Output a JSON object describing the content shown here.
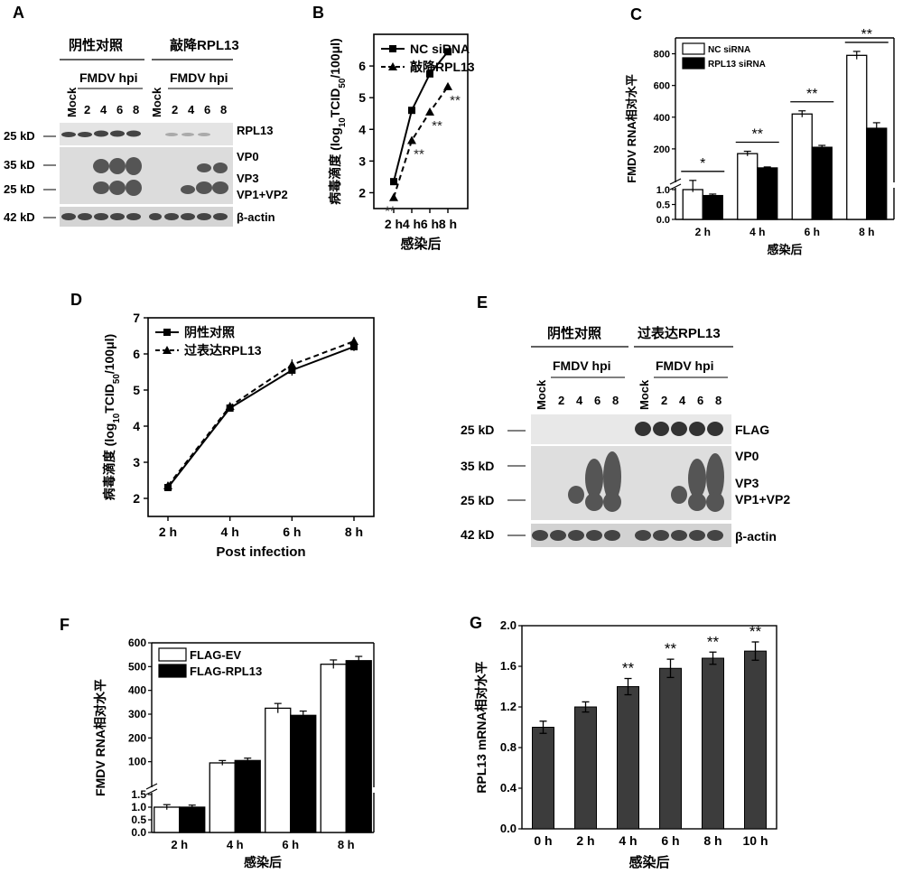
{
  "panels": {
    "A": {
      "letter": "A",
      "groups": [
        "阴性对照",
        "敲降RPL13"
      ],
      "hpi_label": "FMDV hpi",
      "mock": "Mock",
      "times": [
        "2",
        "4",
        "6",
        "8"
      ],
      "markers": [
        "25 kD",
        "35 kD",
        "25 kD",
        "42 kD"
      ],
      "bands": [
        "RPL13",
        "VP0",
        "VP3",
        "VP1+VP2",
        "β-actin"
      ]
    },
    "B": {
      "letter": "B"
    },
    "C": {
      "letter": "C"
    },
    "D": {
      "letter": "D"
    },
    "E": {
      "letter": "E",
      "groups": [
        "阴性对照",
        "过表达RPL13"
      ],
      "hpi_label": "FMDV hpi",
      "mock": "Mock",
      "times": [
        "2",
        "4",
        "6",
        "8"
      ],
      "markers": [
        "25 kD",
        "35 kD",
        "25 kD",
        "42 kD"
      ],
      "bands": [
        "FLAG",
        "VP0",
        "VP3",
        "VP1+VP2",
        "β-actin"
      ]
    },
    "F": {
      "letter": "F"
    },
    "G": {
      "letter": "G"
    }
  },
  "chart_data": [
    {
      "panel": "B",
      "type": "line",
      "x": [
        "2 h",
        "4 h",
        "6 h",
        "8 h"
      ],
      "xlabel": "感染后",
      "ylabel": "病毒滴度 (log10TCID50/100μl)",
      "ylim": [
        1.5,
        7
      ],
      "yticks": [
        2,
        3,
        4,
        5,
        6
      ],
      "legend": "top-left",
      "series": [
        {
          "name": "NC siRNA",
          "values": [
            2.35,
            4.6,
            5.75,
            6.45
          ],
          "errors": [
            0.08,
            0.08,
            0.1,
            0.08
          ],
          "marker": "square",
          "dash": false
        },
        {
          "name": "敲降RPL13",
          "values": [
            1.85,
            3.65,
            4.55,
            5.35
          ],
          "errors": [
            0.08,
            0.1,
            0.08,
            0.1
          ],
          "marker": "triangle",
          "dash": true
        }
      ],
      "annotations": [
        "**",
        "**",
        "**",
        "**"
      ]
    },
    {
      "panel": "C",
      "type": "bar",
      "categories": [
        "2 h",
        "4 h",
        "6 h",
        "8 h"
      ],
      "xlabel": "感染后",
      "ylabel": "FMDV RNA相对水平",
      "broken_axis": true,
      "lower_ticks": [
        "0.0",
        "0.5",
        "1.0"
      ],
      "upper_ticks": [
        "200",
        "400",
        "600",
        "800"
      ],
      "legend": "top-left",
      "series": [
        {
          "name": "NC siRNA",
          "values": [
            1.0,
            170,
            420,
            790
          ],
          "errors": [
            0.08,
            15,
            20,
            25
          ],
          "color": "#ffffff"
        },
        {
          "name": "RPL13 siRNA",
          "values": [
            0.8,
            80,
            210,
            330
          ],
          "errors": [
            0.05,
            6,
            12,
            35
          ],
          "color": "#000000"
        }
      ],
      "annotations": [
        "*",
        "**",
        "**",
        "**"
      ]
    },
    {
      "panel": "D",
      "type": "line",
      "x": [
        "2 h",
        "4 h",
        "6 h",
        "8 h"
      ],
      "xlabel": "Post infection",
      "ylabel": "病毒滴度 (log10TCID50/100μl)",
      "ylim": [
        1.5,
        7
      ],
      "yticks": [
        2,
        3,
        4,
        5,
        6,
        7
      ],
      "legend": "top-left",
      "series": [
        {
          "name": "阴性对照",
          "values": [
            2.3,
            4.5,
            5.55,
            6.2
          ],
          "errors": [
            0.1,
            0.1,
            0.15,
            0.12
          ],
          "marker": "square",
          "dash": false
        },
        {
          "name": "过表达RPL13",
          "values": [
            2.35,
            4.55,
            5.7,
            6.35
          ],
          "errors": [
            0.1,
            0.1,
            0.15,
            0.12
          ],
          "marker": "triangle",
          "dash": true
        }
      ]
    },
    {
      "panel": "F",
      "type": "bar",
      "categories": [
        "2 h",
        "4 h",
        "6 h",
        "8 h"
      ],
      "xlabel": "感染后",
      "ylabel": "FMDV RNA相对水平",
      "broken_axis": true,
      "lower_ticks": [
        "0.0",
        "0.5",
        "1.0",
        "1.5"
      ],
      "upper_ticks": [
        "100",
        "200",
        "300",
        "400",
        "500",
        "600"
      ],
      "legend": "top-left",
      "series": [
        {
          "name": "FLAG-EV",
          "values": [
            1.0,
            95,
            325,
            510
          ],
          "errors": [
            0.1,
            10,
            20,
            18
          ],
          "color": "#ffffff"
        },
        {
          "name": "FLAG-RPL13",
          "values": [
            1.0,
            105,
            295,
            525
          ],
          "errors": [
            0.08,
            10,
            18,
            18
          ],
          "color": "#000000"
        }
      ]
    },
    {
      "panel": "G",
      "type": "bar",
      "categories": [
        "0 h",
        "2 h",
        "4 h",
        "6 h",
        "8 h",
        "10 h"
      ],
      "values": [
        1.0,
        1.2,
        1.4,
        1.58,
        1.68,
        1.75
      ],
      "errors": [
        0.06,
        0.05,
        0.08,
        0.09,
        0.06,
        0.09
      ],
      "xlabel": "感染后",
      "ylabel": "RPL13 mRNA相对水平",
      "ylim": [
        0,
        2.0
      ],
      "yticks": [
        "0.0",
        "0.4",
        "0.8",
        "1.2",
        "1.6",
        "2.0"
      ],
      "color": "#3c3c3c",
      "annotations": [
        "",
        "",
        "**",
        "**",
        "**",
        "**"
      ]
    }
  ]
}
